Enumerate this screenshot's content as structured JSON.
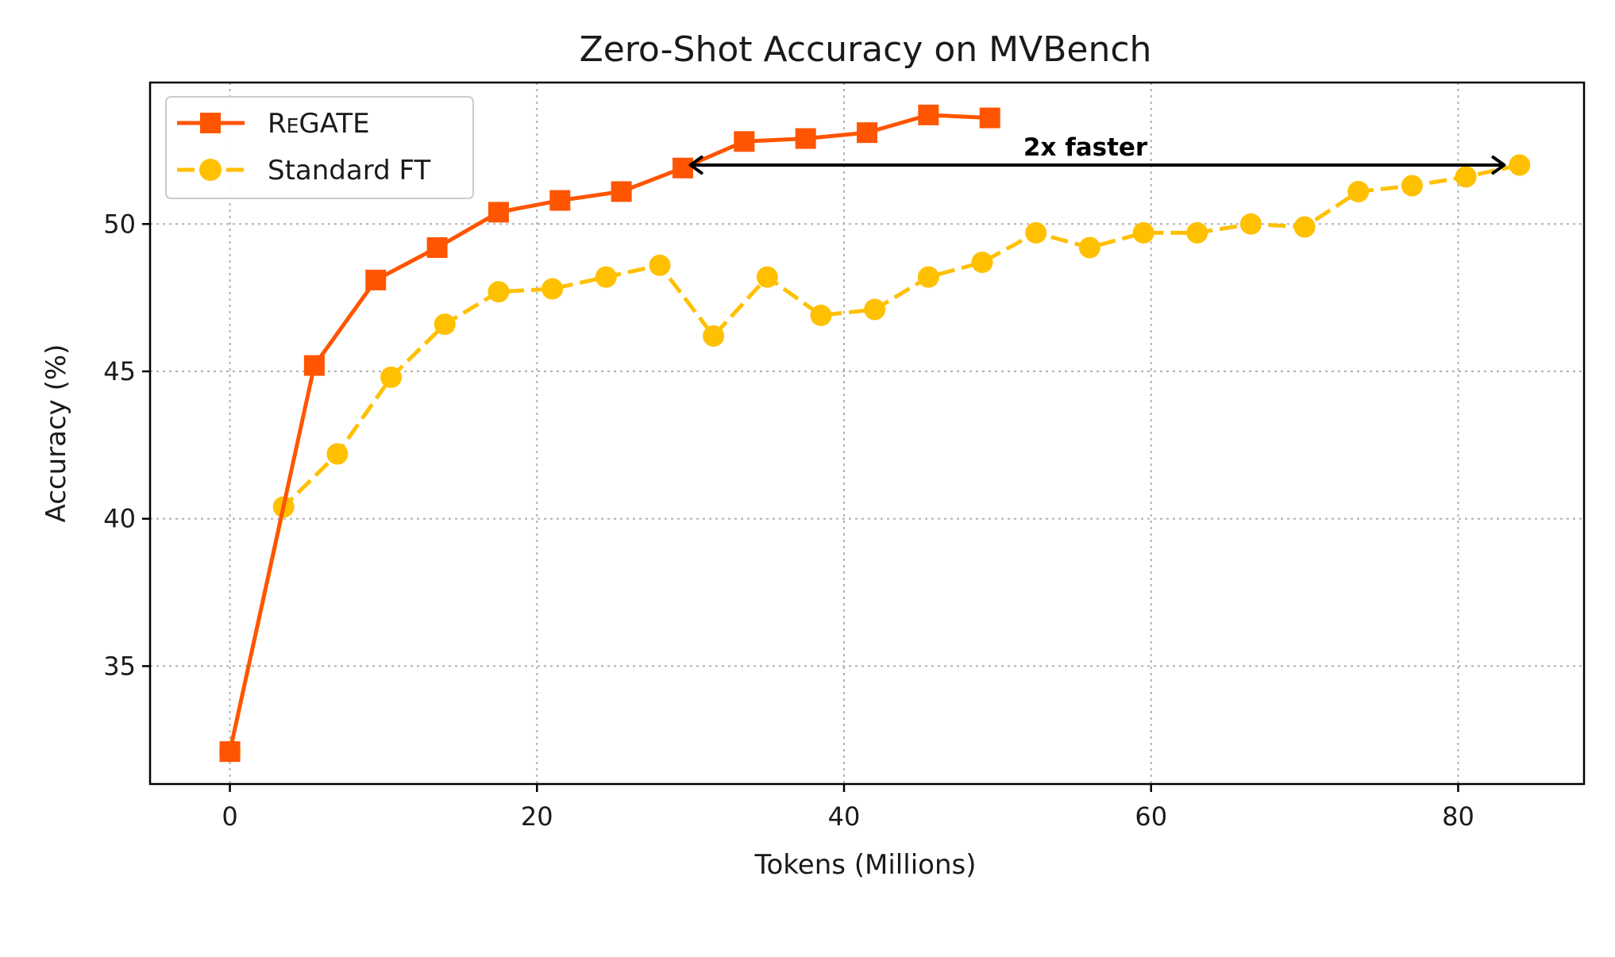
{
  "chart_data": {
    "type": "line",
    "title": "Zero-Shot Accuracy on MVBench",
    "xlabel": "Tokens (Millions)",
    "ylabel": "Accuracy (%)",
    "xlim": [
      -5.2,
      88.2
    ],
    "ylim": [
      31.0,
      54.8
    ],
    "xticks": [
      0,
      20,
      40,
      60,
      80
    ],
    "yticks": [
      35,
      40,
      45,
      50
    ],
    "grid": true,
    "legend_position": "top-left",
    "series": [
      {
        "name": "ReGATE",
        "color": "#ff5500",
        "line_style": "solid",
        "marker": "square",
        "x": [
          0,
          5.5,
          9.5,
          13.5,
          17.5,
          21.5,
          25.5,
          29.5,
          33.5,
          37.5,
          41.5,
          45.5,
          49.5
        ],
        "y": [
          32.1,
          45.2,
          48.1,
          49.2,
          50.4,
          50.8,
          51.1,
          51.9,
          52.8,
          52.9,
          53.1,
          53.7,
          53.6
        ]
      },
      {
        "name": "Standard FT",
        "color": "#ffc000",
        "line_style": "dashed",
        "marker": "circle",
        "x": [
          0,
          3.5,
          7,
          10.5,
          14,
          17.5,
          21,
          24.5,
          28,
          31.5,
          35,
          38.5,
          42,
          45.5,
          49,
          52.5,
          56,
          59.5,
          63,
          66.5,
          70,
          73.5,
          77,
          80.5,
          84
        ],
        "y": [
          32.1,
          40.4,
          42.2,
          44.8,
          46.6,
          47.7,
          47.8,
          48.2,
          48.6,
          46.2,
          48.2,
          46.9,
          47.1,
          48.2,
          48.7,
          49.7,
          49.2,
          49.7,
          49.7,
          50.0,
          49.9,
          51.1,
          51.3,
          51.6,
          52.0
        ]
      }
    ],
    "legend": {
      "entries": [
        {
          "label_big": "R",
          "label_small": "E",
          "label_rest": "GATE"
        },
        {
          "label": "Standard FT"
        }
      ]
    },
    "annotation": {
      "text": "2x faster",
      "x_start": 30,
      "x_end": 83,
      "y": 52
    }
  }
}
